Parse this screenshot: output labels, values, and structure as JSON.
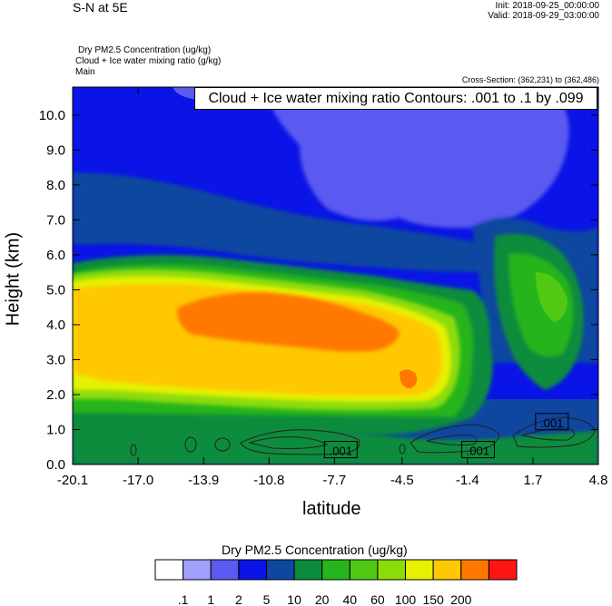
{
  "header": {
    "left_title": "S-N at 5E",
    "init": "Init: 2018-09-25_00:00:00",
    "valid": "Valid: 2018-09-29_03:00:00",
    "field1": "Dry PM2.5 Concentration   (ug/kg)",
    "field2": "Cloud + Ice water mixing ratio   (g/kg)",
    "field3": "Main",
    "cross_section": "Cross-Section: (362,231) to (362,486)",
    "contour_info": "Cloud + Ice water mixing ratio Contours: .001 to .1 by .099"
  },
  "chart_data": {
    "type": "heatmap",
    "xlabel": "latitude",
    "ylabel": "Height (km)",
    "x_ticks": [
      "-20.1",
      "-17.0",
      "-13.9",
      "-10.8",
      "-7.7",
      "-4.5",
      "-1.4",
      "1.7",
      "4.8"
    ],
    "x_range": [
      -20.1,
      4.8
    ],
    "y_ticks": [
      "0.0",
      "1.0",
      "2.0",
      "3.0",
      "4.0",
      "5.0",
      "6.0",
      "7.0",
      "8.0",
      "9.0",
      "10.0"
    ],
    "y_range": [
      0,
      10.8
    ],
    "contour_labels": [
      {
        "text": ".001",
        "lat": -7.4,
        "h": 0.4
      },
      {
        "text": ".001",
        "lat": -0.9,
        "h": 0.4
      },
      {
        "text": ".001",
        "lat": 2.6,
        "h": 1.2
      }
    ],
    "colorbar": {
      "title": "Dry PM2.5 Concentration  (ug/kg)",
      "levels": [
        ".1",
        "1",
        "2",
        "5",
        "10",
        "20",
        "40",
        "60",
        "100",
        "150",
        "200"
      ],
      "colors": [
        "#ffffff",
        "#a0a0ff",
        "#5a5af0",
        "#0a14e6",
        "#0f46a0",
        "#0a8c3c",
        "#28b41e",
        "#50c814",
        "#8cdc0a",
        "#e6f000",
        "#ffc800",
        "#ff7800",
        "#ff1414"
      ]
    }
  }
}
